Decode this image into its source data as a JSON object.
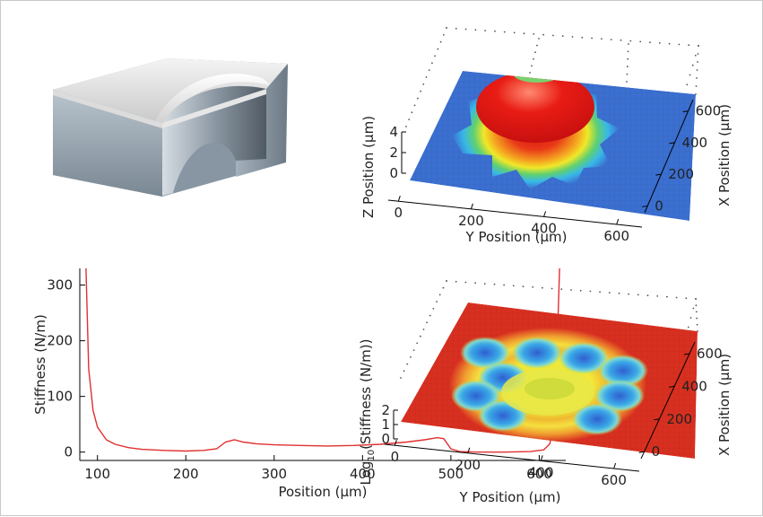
{
  "chart_data": [
    {
      "panel": "3d-model",
      "type": "other"
    },
    {
      "panel": "top-right",
      "type": "surface",
      "xlabel": "Y Position (µm)",
      "ylabel": "X Position (µm)",
      "zlabel": "Z Position (µm)",
      "x_ticks": [
        "0",
        "200",
        "400",
        "600"
      ],
      "y_ticks": [
        "0",
        "200",
        "400",
        "600"
      ],
      "z_ticks": [
        "0",
        "2",
        "4"
      ],
      "colormap": "jet",
      "colors": {
        "low": "#3b6fd0",
        "high": "#e01010"
      }
    },
    {
      "panel": "bottom-left",
      "type": "line",
      "xlabel": "Position (µm)",
      "ylabel": "Stiffness (N/m)",
      "xlim": [
        80,
        630
      ],
      "ylim": [
        -15,
        330
      ],
      "x_ticks": [
        "100",
        "200",
        "300",
        "400",
        "500",
        "600"
      ],
      "y_ticks": [
        "0",
        "100",
        "200",
        "300"
      ],
      "line_color": "#e03030",
      "series": [
        {
          "x": [
            87,
            90,
            95,
            100,
            110,
            120,
            135,
            150,
            175,
            200,
            220,
            235,
            245,
            255,
            265,
            280,
            300,
            330,
            360,
            390,
            420,
            450,
            470,
            485,
            492,
            500,
            510,
            530,
            560,
            590,
            605,
            612,
            617,
            620,
            623
          ],
          "y": [
            330,
            150,
            75,
            45,
            22,
            14,
            8,
            5,
            3,
            2,
            3,
            6,
            18,
            22,
            18,
            15,
            13,
            12,
            11,
            12,
            14,
            18,
            22,
            26,
            24,
            6,
            1,
            0,
            0,
            1,
            4,
            15,
            60,
            170,
            330
          ]
        }
      ]
    },
    {
      "panel": "bottom-right",
      "type": "surface",
      "xlabel": "Y Position (µm)",
      "ylabel": "X Position (µm)",
      "zlabel_main": "Log",
      "zlabel_sub": "10",
      "zlabel_rest": "(Stiffness (N/m))",
      "x_ticks": [
        "0",
        "200",
        "400",
        "600"
      ],
      "y_ticks": [
        "0",
        "200",
        "400",
        "600"
      ],
      "z_ticks": [
        "0",
        "1",
        "2"
      ],
      "colormap": "jet",
      "colors": {
        "low": "#3b6fd0",
        "high": "#d83020"
      }
    }
  ]
}
